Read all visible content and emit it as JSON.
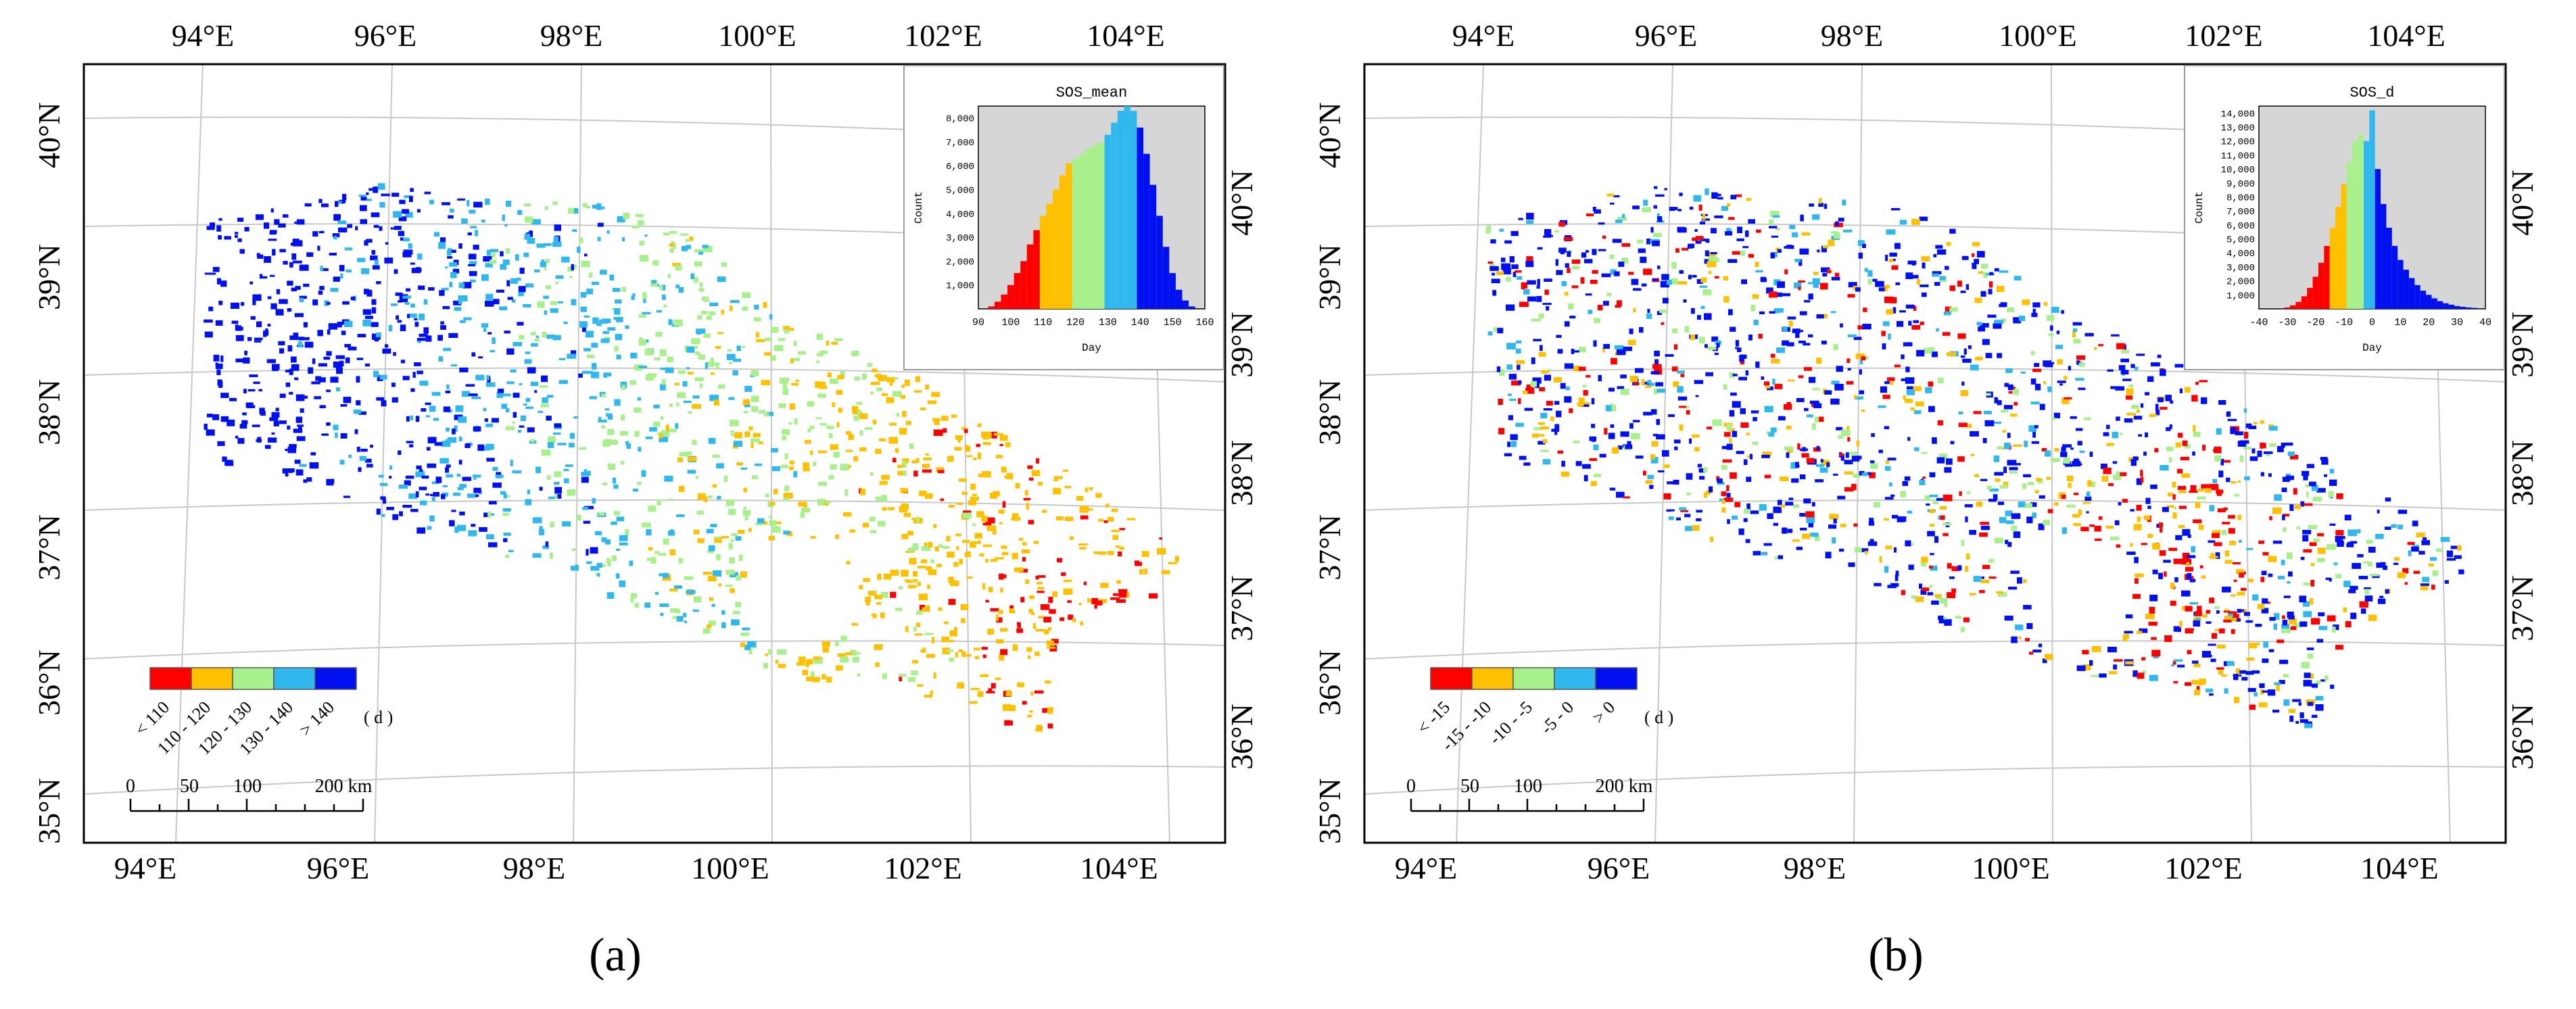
{
  "panels": [
    {
      "id": "a",
      "caption": "(a)",
      "lon_ticks": [
        "94°E",
        "96°E",
        "98°E",
        "100°E",
        "102°E",
        "104°E"
      ],
      "lat_left": [
        "40°N",
        "39°N",
        "38°N",
        "37°N",
        "36°N",
        "35°N"
      ],
      "lat_right": [
        "40°N",
        "39°N",
        "38°N",
        "37°N",
        "36°N"
      ],
      "legend": {
        "classes": [
          {
            "label": "< 110",
            "color": "#ff0000"
          },
          {
            "label": "110 - 120",
            "color": "#ffc000"
          },
          {
            "label": "120 - 130",
            "color": "#a8f08c"
          },
          {
            "label": "130 - 140",
            "color": "#30b8ee"
          },
          {
            "label": "> 140",
            "color": "#0010f0"
          }
        ],
        "unit": "( d )"
      },
      "scale_bar": {
        "ticks": [
          "0",
          "50",
          "100",
          "200 km"
        ]
      },
      "inset_type": "mean"
    },
    {
      "id": "b",
      "caption": "(b)",
      "lon_ticks": [
        "94°E",
        "96°E",
        "98°E",
        "100°E",
        "102°E",
        "104°E"
      ],
      "lat_left": [
        "40°N",
        "39°N",
        "38°N",
        "37°N",
        "36°N",
        "35°N"
      ],
      "lat_right": [
        "40°N",
        "39°N",
        "38°N",
        "37°N",
        "36°N"
      ],
      "legend": {
        "classes": [
          {
            "label": "< -15",
            "color": "#ff0000"
          },
          {
            "label": "-15 - -10",
            "color": "#ffc000"
          },
          {
            "label": "-10 - -5",
            "color": "#a8f08c"
          },
          {
            "label": "-5 - 0",
            "color": "#30b8ee"
          },
          {
            "label": "> 0",
            "color": "#0010f0"
          }
        ],
        "unit": "( d )"
      },
      "scale_bar": {
        "ticks": [
          "0",
          "50",
          "100",
          "200 km"
        ]
      },
      "inset_type": "d"
    }
  ],
  "chart_data": [
    {
      "type": "bar",
      "title": "SOS_mean",
      "xlabel": "Day",
      "ylabel": "Count",
      "xlim": [
        90,
        160
      ],
      "ylim": [
        0,
        8500
      ],
      "x_ticks": [
        "90",
        "100",
        "110",
        "120",
        "130",
        "140",
        "150",
        "160"
      ],
      "y_ticks": [
        "1,000",
        "2,000",
        "3,000",
        "4,000",
        "5,000",
        "6,000",
        "7,000",
        "8,000"
      ],
      "bins": [
        {
          "x": 94,
          "v": 100,
          "c": "#ff0000"
        },
        {
          "x": 96,
          "v": 300,
          "c": "#ff0000"
        },
        {
          "x": 98,
          "v": 600,
          "c": "#ff0000"
        },
        {
          "x": 100,
          "v": 1000,
          "c": "#ff0000"
        },
        {
          "x": 102,
          "v": 1500,
          "c": "#ff0000"
        },
        {
          "x": 104,
          "v": 2000,
          "c": "#ff0000"
        },
        {
          "x": 106,
          "v": 2700,
          "c": "#ff0000"
        },
        {
          "x": 108,
          "v": 3300,
          "c": "#ff0000"
        },
        {
          "x": 110,
          "v": 3900,
          "c": "#ffc000"
        },
        {
          "x": 112,
          "v": 4400,
          "c": "#ffc000"
        },
        {
          "x": 114,
          "v": 5000,
          "c": "#ffc000"
        },
        {
          "x": 116,
          "v": 5600,
          "c": "#ffc000"
        },
        {
          "x": 118,
          "v": 6100,
          "c": "#ffc000"
        },
        {
          "x": 120,
          "v": 6300,
          "c": "#a8f08c"
        },
        {
          "x": 122,
          "v": 6500,
          "c": "#a8f08c"
        },
        {
          "x": 124,
          "v": 6700,
          "c": "#a8f08c"
        },
        {
          "x": 126,
          "v": 6850,
          "c": "#a8f08c"
        },
        {
          "x": 128,
          "v": 7000,
          "c": "#a8f08c"
        },
        {
          "x": 130,
          "v": 7300,
          "c": "#30b8ee"
        },
        {
          "x": 132,
          "v": 7800,
          "c": "#30b8ee"
        },
        {
          "x": 134,
          "v": 8300,
          "c": "#30b8ee"
        },
        {
          "x": 136,
          "v": 8500,
          "c": "#30b8ee"
        },
        {
          "x": 138,
          "v": 8300,
          "c": "#30b8ee"
        },
        {
          "x": 140,
          "v": 7600,
          "c": "#0010f0"
        },
        {
          "x": 142,
          "v": 6500,
          "c": "#0010f0"
        },
        {
          "x": 144,
          "v": 5200,
          "c": "#0010f0"
        },
        {
          "x": 146,
          "v": 3900,
          "c": "#0010f0"
        },
        {
          "x": 148,
          "v": 2600,
          "c": "#0010f0"
        },
        {
          "x": 150,
          "v": 1500,
          "c": "#0010f0"
        },
        {
          "x": 152,
          "v": 800,
          "c": "#0010f0"
        },
        {
          "x": 154,
          "v": 350,
          "c": "#0010f0"
        },
        {
          "x": 156,
          "v": 100,
          "c": "#0010f0"
        }
      ]
    },
    {
      "type": "bar",
      "title": "SOS_d",
      "xlabel": "Day",
      "ylabel": "Count",
      "xlim": [
        -40,
        40
      ],
      "ylim": [
        0,
        14500
      ],
      "x_ticks": [
        "-40",
        "-30",
        "-20",
        "-10",
        "0",
        "10",
        "20",
        "30",
        "40"
      ],
      "y_ticks": [
        "1,000",
        "2,000",
        "3,000",
        "4,000",
        "5,000",
        "6,000",
        "7,000",
        "8,000",
        "9,000",
        "10,000",
        "11,000",
        "12,000",
        "13,000",
        "14,000"
      ],
      "bins": [
        {
          "x": -30,
          "v": 100,
          "c": "#ff0000"
        },
        {
          "x": -28,
          "v": 250,
          "c": "#ff0000"
        },
        {
          "x": -26,
          "v": 500,
          "c": "#ff0000"
        },
        {
          "x": -24,
          "v": 900,
          "c": "#ff0000"
        },
        {
          "x": -22,
          "v": 1500,
          "c": "#ff0000"
        },
        {
          "x": -20,
          "v": 2300,
          "c": "#ff0000"
        },
        {
          "x": -18,
          "v": 3300,
          "c": "#ff0000"
        },
        {
          "x": -16,
          "v": 4500,
          "c": "#ff0000"
        },
        {
          "x": -14,
          "v": 5800,
          "c": "#ffc000"
        },
        {
          "x": -12,
          "v": 7300,
          "c": "#ffc000"
        },
        {
          "x": -10,
          "v": 8900,
          "c": "#ffc000"
        },
        {
          "x": -8,
          "v": 10500,
          "c": "#a8f08c"
        },
        {
          "x": -6,
          "v": 12000,
          "c": "#a8f08c"
        },
        {
          "x": -4,
          "v": 12500,
          "c": "#a8f08c"
        },
        {
          "x": -2,
          "v": 12000,
          "c": "#30b8ee"
        },
        {
          "x": 0,
          "v": 14200,
          "c": "#30b8ee"
        },
        {
          "x": 2,
          "v": 10000,
          "c": "#0010f0"
        },
        {
          "x": 4,
          "v": 7500,
          "c": "#0010f0"
        },
        {
          "x": 6,
          "v": 5800,
          "c": "#0010f0"
        },
        {
          "x": 8,
          "v": 4500,
          "c": "#0010f0"
        },
        {
          "x": 10,
          "v": 3500,
          "c": "#0010f0"
        },
        {
          "x": 12,
          "v": 2800,
          "c": "#0010f0"
        },
        {
          "x": 14,
          "v": 2200,
          "c": "#0010f0"
        },
        {
          "x": 16,
          "v": 1700,
          "c": "#0010f0"
        },
        {
          "x": 18,
          "v": 1300,
          "c": "#0010f0"
        },
        {
          "x": 20,
          "v": 1000,
          "c": "#0010f0"
        },
        {
          "x": 22,
          "v": 750,
          "c": "#0010f0"
        },
        {
          "x": 24,
          "v": 550,
          "c": "#0010f0"
        },
        {
          "x": 26,
          "v": 400,
          "c": "#0010f0"
        },
        {
          "x": 28,
          "v": 300,
          "c": "#0010f0"
        },
        {
          "x": 30,
          "v": 200,
          "c": "#0010f0"
        },
        {
          "x": 32,
          "v": 150,
          "c": "#0010f0"
        },
        {
          "x": 34,
          "v": 100,
          "c": "#0010f0"
        },
        {
          "x": 36,
          "v": 70,
          "c": "#0010f0"
        }
      ]
    }
  ]
}
